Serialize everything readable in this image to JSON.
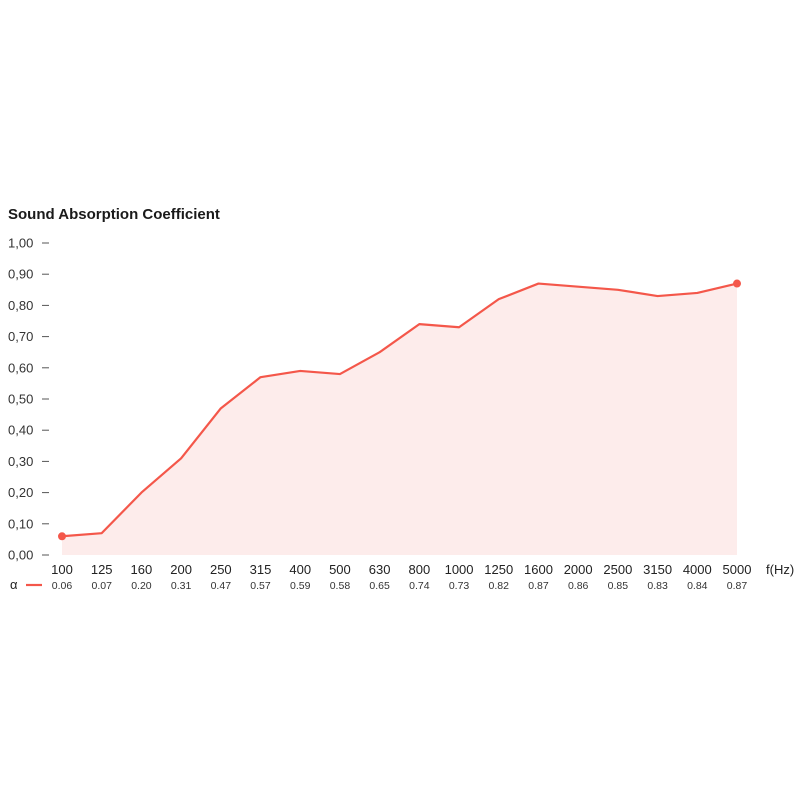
{
  "colors": {
    "line": "#f4574a",
    "fill": "#fdeceb",
    "tick": "#555555"
  },
  "chart_data": {
    "type": "area",
    "title": "Sound Absorption Coefficient",
    "xlabel": "f(Hz)",
    "ylabel": "",
    "x": [
      "100",
      "125",
      "160",
      "200",
      "250",
      "315",
      "400",
      "500",
      "630",
      "800",
      "1000",
      "1250",
      "1600",
      "2000",
      "2500",
      "3150",
      "4000",
      "5000"
    ],
    "y_ticks": [
      "0,00",
      "0,10",
      "0,20",
      "0,30",
      "0,40",
      "0,50",
      "0,60",
      "0,70",
      "0,80",
      "0,90",
      "1,00"
    ],
    "ylim": [
      0,
      1
    ],
    "grid": false,
    "series": [
      {
        "name": "α",
        "values": [
          0.06,
          0.07,
          0.2,
          0.31,
          0.47,
          0.57,
          0.59,
          0.58,
          0.65,
          0.74,
          0.73,
          0.82,
          0.87,
          0.86,
          0.85,
          0.83,
          0.84,
          0.87
        ],
        "value_labels": [
          "0.06",
          "0.07",
          "0.20",
          "0.31",
          "0.47",
          "0.57",
          "0.59",
          "0.58",
          "0.65",
          "0.74",
          "0.73",
          "0.82",
          "0.87",
          "0.86",
          "0.85",
          "0.83",
          "0.84",
          "0.87"
        ]
      }
    ],
    "legend": "bottom-left"
  }
}
